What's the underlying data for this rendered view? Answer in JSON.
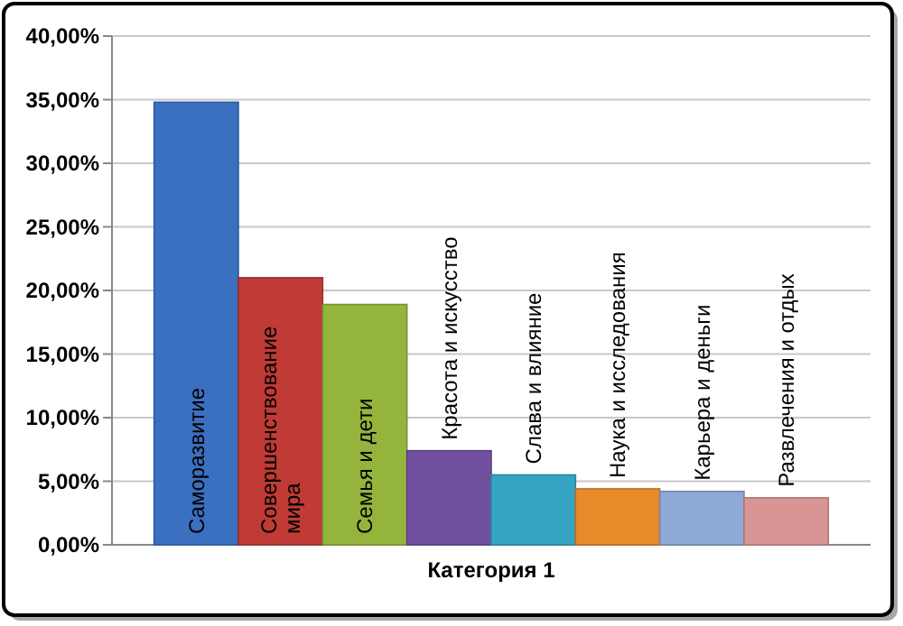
{
  "chart_data": {
    "type": "bar",
    "categories": [
      "Категория 1"
    ],
    "series": [
      {
        "name": "Саморазвитие",
        "color": "#3b6fc0",
        "values": [
          34.8
        ]
      },
      {
        "name": "Совершенствование мира",
        "color": "#c03a36",
        "values": [
          21.0
        ]
      },
      {
        "name": "Семья и дети",
        "color": "#94b43c",
        "values": [
          18.9
        ]
      },
      {
        "name": "Красота и искусство",
        "color": "#7150a0",
        "values": [
          7.4
        ]
      },
      {
        "name": "Слава и влияние",
        "color": "#36a5c4",
        "values": [
          5.5
        ]
      },
      {
        "name": "Наука и исследования",
        "color": "#e98a2a",
        "values": [
          4.4
        ]
      },
      {
        "name": "Карьера и деньги",
        "color": "#8fa9d8",
        "values": [
          4.2
        ]
      },
      {
        "name": "Развлечения и отдых",
        "color": "#d99594",
        "values": [
          3.7
        ]
      }
    ],
    "ylim": [
      0,
      40
    ],
    "yticks": [
      {
        "value": 0,
        "label": "0,00%"
      },
      {
        "value": 5,
        "label": "5,00%"
      },
      {
        "value": 10,
        "label": "10,00%"
      },
      {
        "value": 15,
        "label": "15,00%"
      },
      {
        "value": 20,
        "label": "20,00%"
      },
      {
        "value": 25,
        "label": "25,00%"
      },
      {
        "value": 30,
        "label": "30,00%"
      },
      {
        "value": 35,
        "label": "35,00%"
      },
      {
        "value": 40,
        "label": "40,00%"
      }
    ],
    "grid": "y"
  }
}
